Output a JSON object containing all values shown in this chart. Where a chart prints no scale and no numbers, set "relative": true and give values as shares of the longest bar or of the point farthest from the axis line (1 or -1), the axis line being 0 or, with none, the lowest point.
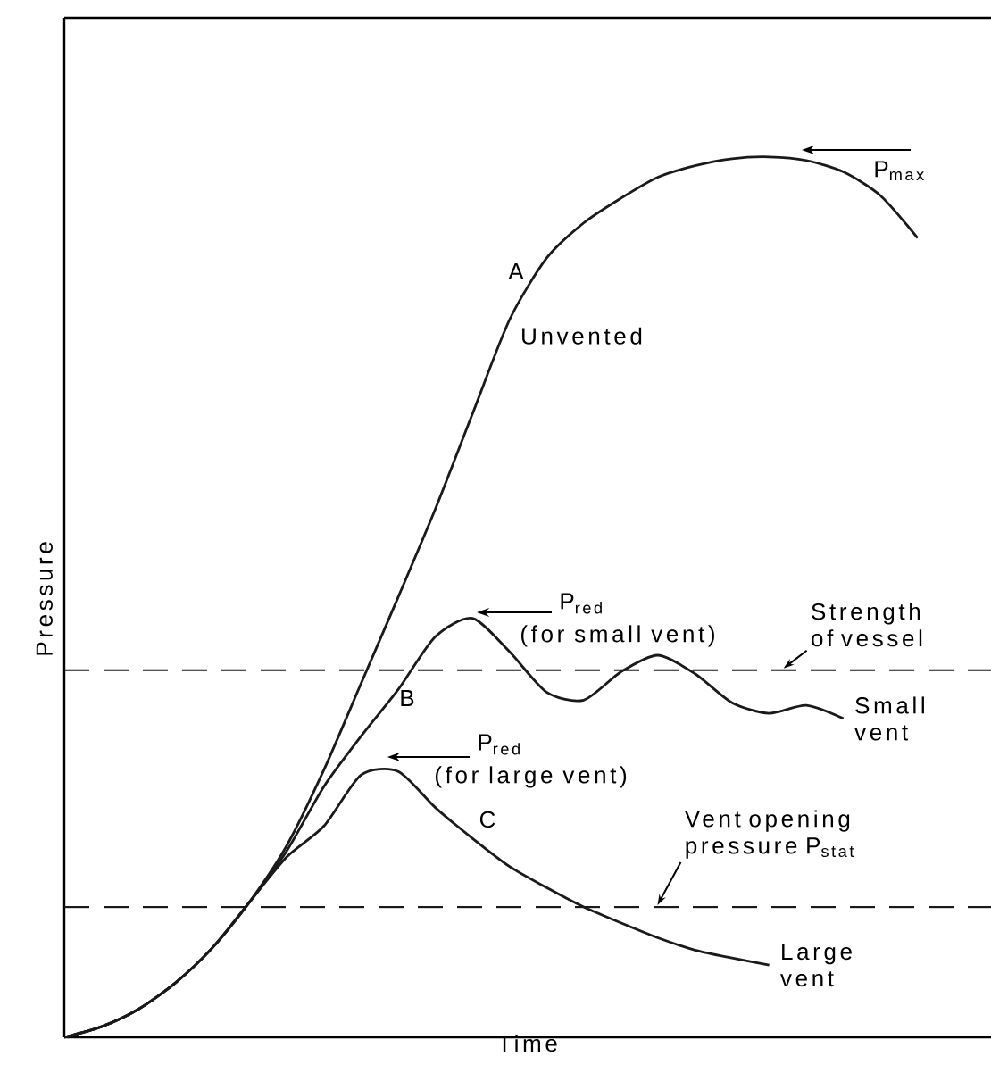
{
  "chart_data": {
    "type": "line",
    "relative": true,
    "xlabel": "Time",
    "ylabel": "Pressure",
    "categories": [
      null,
      null,
      null,
      null,
      null,
      null,
      null,
      null,
      null,
      null,
      null,
      null,
      null,
      null,
      null,
      null,
      null,
      null,
      null,
      null,
      null,
      null,
      null,
      null
    ],
    "series": [
      {
        "name": "Unvented",
        "color": "#1a1a1a",
        "values": [
          0,
          0.012,
          0.032,
          0.062,
          0.102,
          0.154,
          0.218,
          0.304,
          0.402,
          0.5,
          0.6,
          0.708,
          0.815,
          0.885,
          0.925,
          0.953,
          0.977,
          0.99,
          0.998,
          1.0,
          0.996,
          0.983,
          0.956,
          0.908
        ]
      },
      {
        "name": "Small vent",
        "color": "#1a1a1a",
        "values": [
          0,
          0.012,
          0.032,
          0.062,
          0.102,
          0.154,
          0.212,
          0.285,
          0.342,
          0.395,
          0.455,
          0.476,
          0.438,
          0.392,
          0.383,
          0.415,
          0.434,
          0.413,
          0.38,
          0.368,
          0.377,
          0.362,
          null,
          null
        ]
      },
      {
        "name": "Large vent",
        "color": "#1a1a1a",
        "values": [
          0,
          0.012,
          0.032,
          0.062,
          0.102,
          0.154,
          0.205,
          0.24,
          0.298,
          0.302,
          0.261,
          0.226,
          0.194,
          0.17,
          0.148,
          0.13,
          0.113,
          0.099,
          0.09,
          0.082,
          null,
          null,
          null,
          null
        ]
      }
    ],
    "ref_lines": [
      {
        "axis": "y",
        "value": 0.417,
        "label": "Strength of vessel",
        "line_style": "dashed",
        "color": "#1a1a1a"
      },
      {
        "axis": "y",
        "value": 0.148,
        "label": "Vent opening pressure P$_{stat}$",
        "line_style": "dashed",
        "color": "#1a1a1a"
      }
    ],
    "annotations": [
      "A",
      "P$_{max}$",
      "P$_{red}$",
      "(for small vent)",
      "P$_{red}$",
      "(for large vent)",
      "B",
      "C"
    ]
  }
}
